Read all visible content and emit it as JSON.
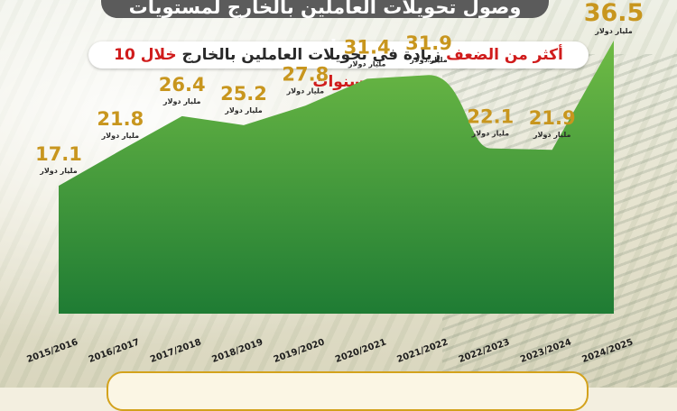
{
  "header": {
    "title": "وصول تحويلات العاملين بالخارج لمستويات قياسية",
    "subtitle_red_1": "أكثر من الضعف",
    "subtitle_dark": "زيادة في تحويلات العاملين بالخارج",
    "subtitle_red_2": "خلال 10 سنوات"
  },
  "colors": {
    "area_top": "#69b543",
    "area_bottom": "#1f7c34",
    "value": "#c8961e",
    "unit": "#2a2a2a",
    "banner": "#5b5b5b"
  },
  "chart_data": {
    "type": "area",
    "categories": [
      "2015/2016",
      "2016/2017",
      "2017/2018",
      "2018/2019",
      "2019/2020",
      "2020/2021",
      "2021/2022",
      "2022/2023",
      "2023/2024",
      "2024/2025"
    ],
    "values": [
      17.1,
      21.8,
      26.4,
      25.2,
      27.8,
      31.4,
      31.9,
      22.1,
      21.9,
      36.5
    ],
    "value_labels": [
      "17.1",
      "21.8",
      "26.4",
      "25.2",
      "27.8",
      "31.4",
      "31.9",
      "22.1",
      "21.9",
      "36.5"
    ],
    "unit_label": "مليار دولار",
    "ylim": [
      0,
      40
    ]
  }
}
